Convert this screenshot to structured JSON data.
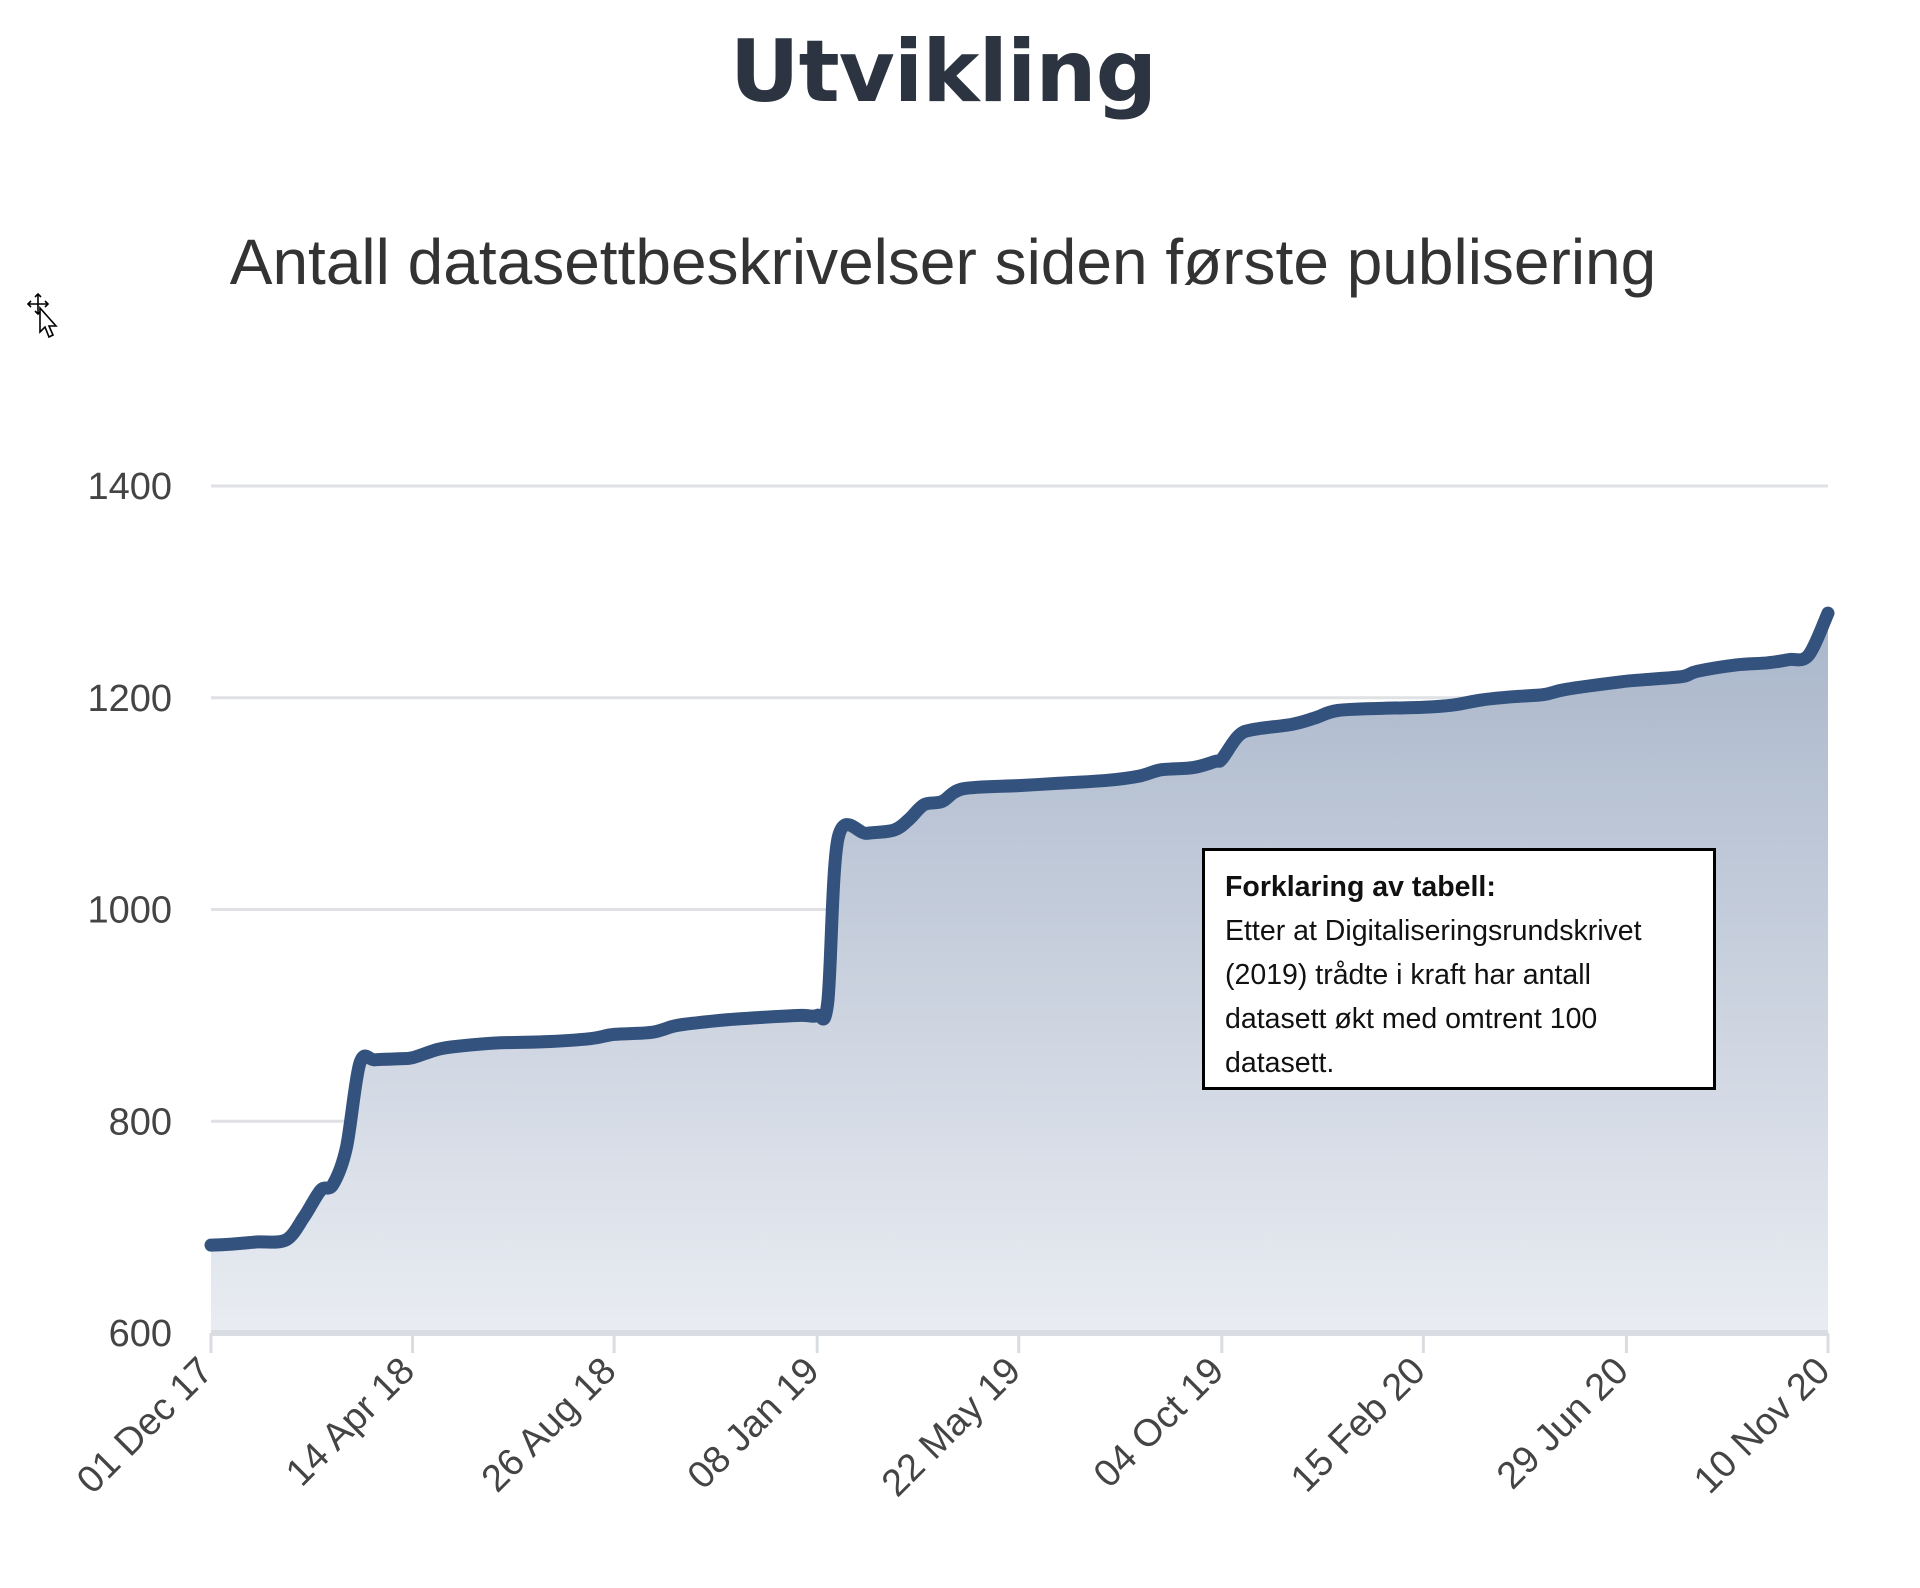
{
  "page": {
    "title": "Utvikling"
  },
  "note": {
    "heading": "Forklaring av tabell:",
    "body": "Etter at Digitaliseringsrundskrivet (2019) trådte i kraft har antall datasett økt med omtrent 100 datasett."
  },
  "colors": {
    "line": "#34527e",
    "area_top": "#a9b6ca",
    "area_bottom": "#e9ecf2"
  },
  "chart_data": {
    "type": "area",
    "title": "Antall datasettbeskrivelser siden første publisering",
    "xlabel": "",
    "ylabel": "",
    "ylim": [
      600,
      1400
    ],
    "yticks": [
      600,
      800,
      1000,
      1200,
      1400
    ],
    "xlim": [
      "2017-12-01",
      "2020-11-10"
    ],
    "xtick_labels": [
      "01 Dec 17",
      "14 Apr 18",
      "26 Aug 18",
      "08 Jan 19",
      "22 May 19",
      "04 Oct 19",
      "15 Feb 20",
      "29 Jun 20",
      "10 Nov 20"
    ],
    "xtick_dates": [
      "2017-12-01",
      "2018-04-14",
      "2018-08-26",
      "2019-01-08",
      "2019-05-22",
      "2019-10-04",
      "2020-02-15",
      "2020-06-29",
      "2020-11-10"
    ],
    "grid": true,
    "legend": "none",
    "series": [
      {
        "x": [
          "2017-12-01",
          "2017-12-15",
          "2018-01-01",
          "2018-01-20",
          "2018-02-01",
          "2018-02-12",
          "2018-02-20",
          "2018-03-01",
          "2018-03-10",
          "2018-03-20",
          "2018-04-05",
          "2018-04-14",
          "2018-05-01",
          "2018-05-15",
          "2018-06-10",
          "2018-07-10",
          "2018-08-10",
          "2018-08-26",
          "2018-09-20",
          "2018-10-05",
          "2018-10-20",
          "2018-11-10",
          "2018-12-01",
          "2018-12-28",
          "2019-01-08",
          "2019-01-15",
          "2019-01-22",
          "2019-02-10",
          "2019-02-28",
          "2019-03-10",
          "2019-03-20",
          "2019-04-01",
          "2019-04-15",
          "2019-05-22",
          "2019-06-15",
          "2019-07-20",
          "2019-08-10",
          "2019-08-25",
          "2019-09-15",
          "2019-09-30",
          "2019-10-04",
          "2019-10-15",
          "2019-10-25",
          "2019-11-20",
          "2019-12-05",
          "2019-12-20",
          "2020-01-20",
          "2020-02-15",
          "2020-03-05",
          "2020-03-25",
          "2020-04-15",
          "2020-05-05",
          "2020-05-20",
          "2020-06-25",
          "2020-07-10",
          "2020-08-05",
          "2020-08-15",
          "2020-09-10",
          "2020-10-01",
          "2020-10-15",
          "2020-10-28",
          "2020-11-10"
        ],
        "y": [
          683,
          684,
          686,
          688,
          710,
          735,
          740,
          775,
          855,
          858,
          859,
          860,
          868,
          871,
          874,
          875,
          878,
          882,
          884,
          890,
          893,
          896,
          898,
          900,
          900,
          912,
          1068,
          1072,
          1075,
          1085,
          1099,
          1102,
          1114,
          1117,
          1119,
          1122,
          1126,
          1132,
          1134,
          1140,
          1142,
          1164,
          1170,
          1175,
          1181,
          1188,
          1190,
          1191,
          1193,
          1198,
          1201,
          1203,
          1208,
          1215,
          1217,
          1220,
          1225,
          1231,
          1233,
          1236,
          1240,
          1280
        ]
      }
    ]
  }
}
